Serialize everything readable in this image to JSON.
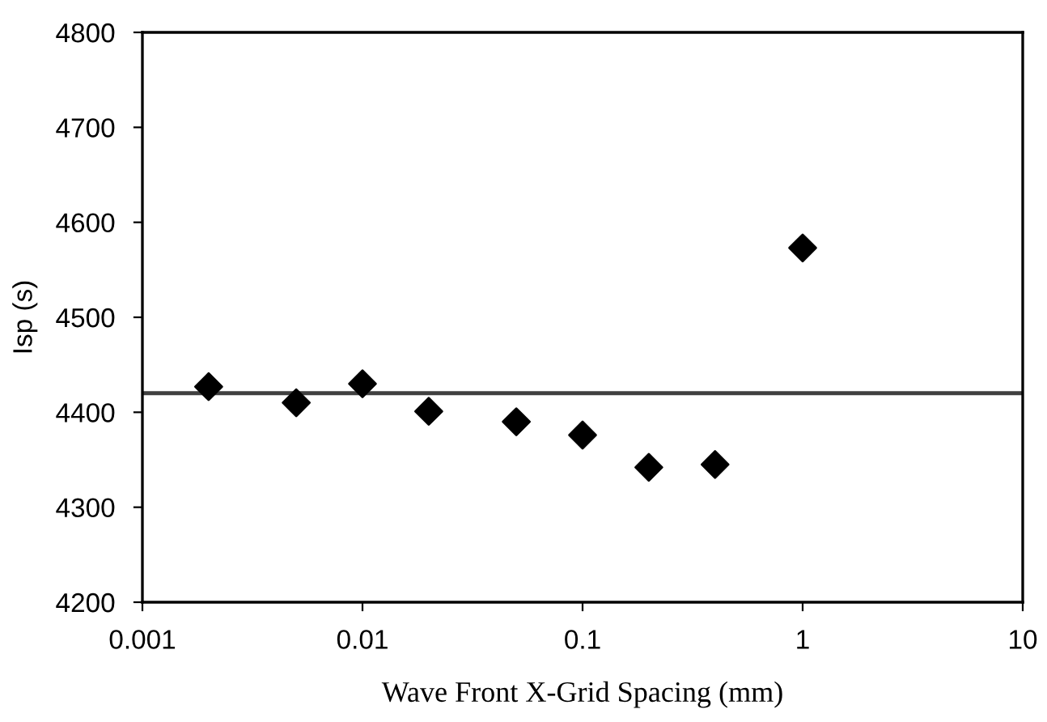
{
  "chart_data": {
    "type": "scatter",
    "xlabel": "Wave Front X-Grid Spacing (mm)",
    "ylabel": "Isp (s)",
    "x": [
      0.002,
      0.005,
      0.01,
      0.02,
      0.05,
      0.1,
      0.2,
      0.4,
      1
    ],
    "series": [
      {
        "color": "#000000",
        "values": [
          4427,
          4410,
          4430,
          4401,
          4390,
          4376,
          4342,
          4345,
          4573
        ]
      }
    ],
    "marker": "diamond",
    "log": "x",
    "xlim": [
      0.001,
      10
    ],
    "xticks": [
      0.001,
      0.01,
      0.1,
      1,
      10
    ],
    "ylim": [
      4200,
      4800
    ],
    "yticks": [
      4200,
      4300,
      4400,
      4500,
      4600,
      4700,
      4800
    ],
    "ref_lines": [
      {
        "axis": "y",
        "value": 4420,
        "color": "#404040",
        "line_style": "solid"
      }
    ],
    "grid": false,
    "legend": false
  }
}
